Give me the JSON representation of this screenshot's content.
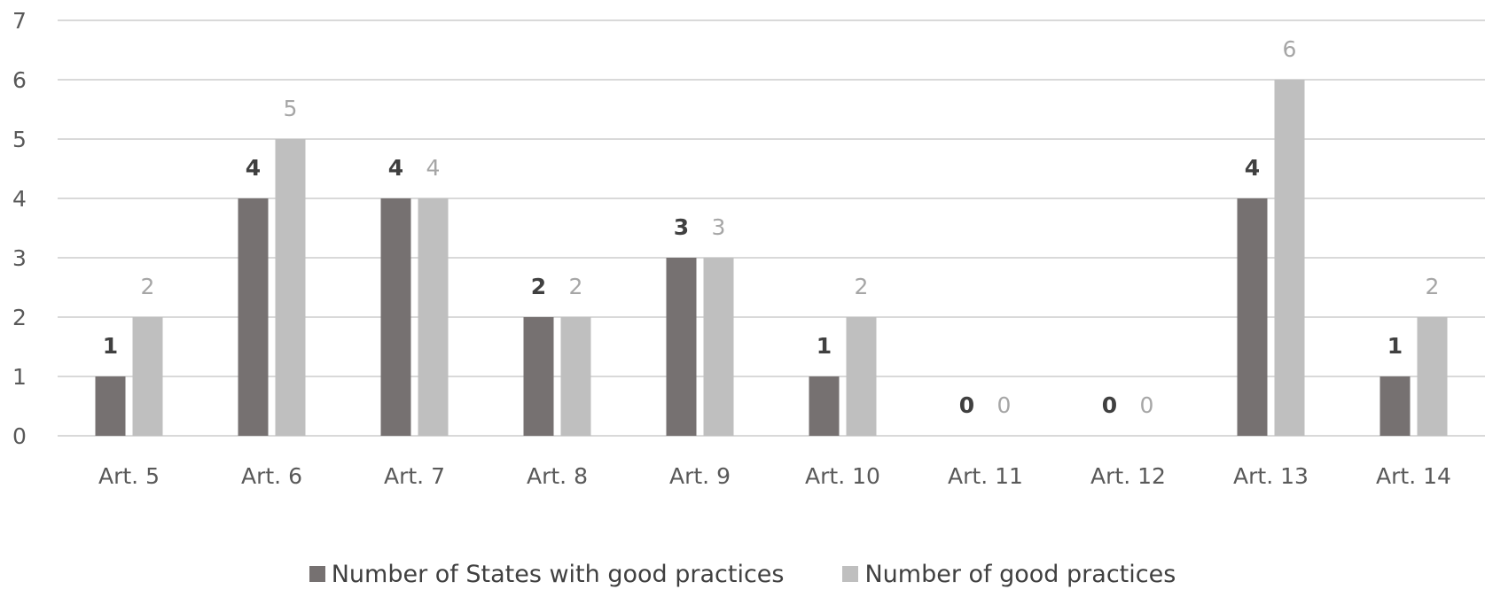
{
  "chart_data": {
    "type": "bar",
    "categories": [
      "Art. 5",
      "Art. 6",
      "Art. 7",
      "Art. 8",
      "Art. 9",
      "Art. 10",
      "Art. 11",
      "Art. 12",
      "Art. 13",
      "Art. 14"
    ],
    "series": [
      {
        "name": "Number of States with good practices",
        "values": [
          1,
          4,
          4,
          2,
          3,
          1,
          0,
          0,
          4,
          1
        ],
        "color": "#767171"
      },
      {
        "name": "Number of good practices",
        "values": [
          2,
          5,
          4,
          2,
          3,
          2,
          0,
          0,
          6,
          2
        ],
        "color": "#bfbfbf"
      }
    ],
    "yticks": [
      0,
      1,
      2,
      3,
      4,
      5,
      6,
      7
    ],
    "ylim": [
      0,
      7
    ],
    "grid": true,
    "legend_position": "bottom"
  }
}
